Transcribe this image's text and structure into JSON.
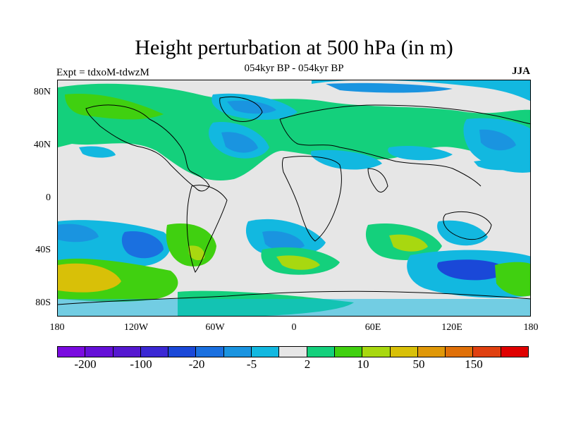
{
  "title": "Height perturbation at 500 hPa (in m)",
  "subtitle": "054kyr BP - 054kyr BP",
  "expt_label": "Expt = tdxoM-tdwzM",
  "season": "JJA",
  "map": {
    "lat_labels": [
      "80N",
      "40N",
      "0",
      "40S",
      "80S"
    ],
    "lon_labels": [
      "180",
      "120W",
      "60W",
      "0",
      "60E",
      "120E",
      "180"
    ]
  },
  "colorbar": {
    "colors": [
      "#7a0be0",
      "#6510d8",
      "#5518d0",
      "#3b28d4",
      "#1a48d8",
      "#1a70e0",
      "#1a94e0",
      "#12b8e0",
      "#e6e6e6",
      "#14d07c",
      "#40d010",
      "#a8d810",
      "#d8c008",
      "#e09808",
      "#e07008",
      "#e04010",
      "#e00000"
    ],
    "labels": [
      "-200",
      "-100",
      "-20",
      "-5",
      "2",
      "10",
      "50",
      "150"
    ]
  },
  "colors": {
    "light_blue": "#12b8e0",
    "mid_blue": "#1a94e0",
    "blue": "#1a70e0",
    "deep_blue": "#1a48d8",
    "teal_green": "#14d07c",
    "green": "#40d010",
    "yellow_green": "#a8d810",
    "gold": "#d8c008",
    "neutral": "#e6e6e6"
  }
}
